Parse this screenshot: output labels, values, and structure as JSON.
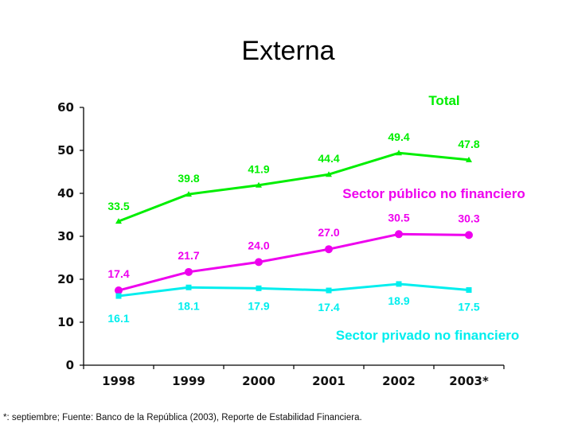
{
  "chart_data": {
    "type": "line",
    "title": "Externa",
    "xlabel": "",
    "ylabel": "",
    "categories": [
      "1998",
      "1999",
      "2000",
      "2001",
      "2002",
      "2003*"
    ],
    "ylim": [
      0,
      60
    ],
    "yticks": [
      "0",
      "10",
      "20",
      "30",
      "40",
      "50",
      "60"
    ],
    "grid": false,
    "legend": "inline labels near each series",
    "series": [
      {
        "name": "Total",
        "color": "#00ee00",
        "marker": "triangle",
        "values": [
          33.5,
          39.8,
          41.9,
          44.4,
          49.4,
          47.8
        ],
        "labels": [
          "33.5",
          "39.8",
          "41.9",
          "44.4",
          "49.4",
          "47.8"
        ]
      },
      {
        "name": "Sector público no financiero",
        "color": "#ee00ee",
        "marker": "circle",
        "values": [
          17.4,
          21.7,
          24.0,
          27.0,
          30.5,
          30.3
        ],
        "labels": [
          "17.4",
          "21.7",
          "24.0",
          "27.0",
          "30.5",
          "30.3"
        ]
      },
      {
        "name": "Sector privado no financiero",
        "color": "#00eeee",
        "marker": "square",
        "values": [
          16.1,
          18.1,
          17.9,
          17.4,
          18.9,
          17.5
        ],
        "labels": [
          "16.1",
          "18.1",
          "17.9",
          "17.4",
          "18.9",
          "17.5"
        ]
      }
    ]
  },
  "footnote": "*: septiembre; Fuente: Banco de la República (2003), Reporte de Estabilidad Financiera."
}
